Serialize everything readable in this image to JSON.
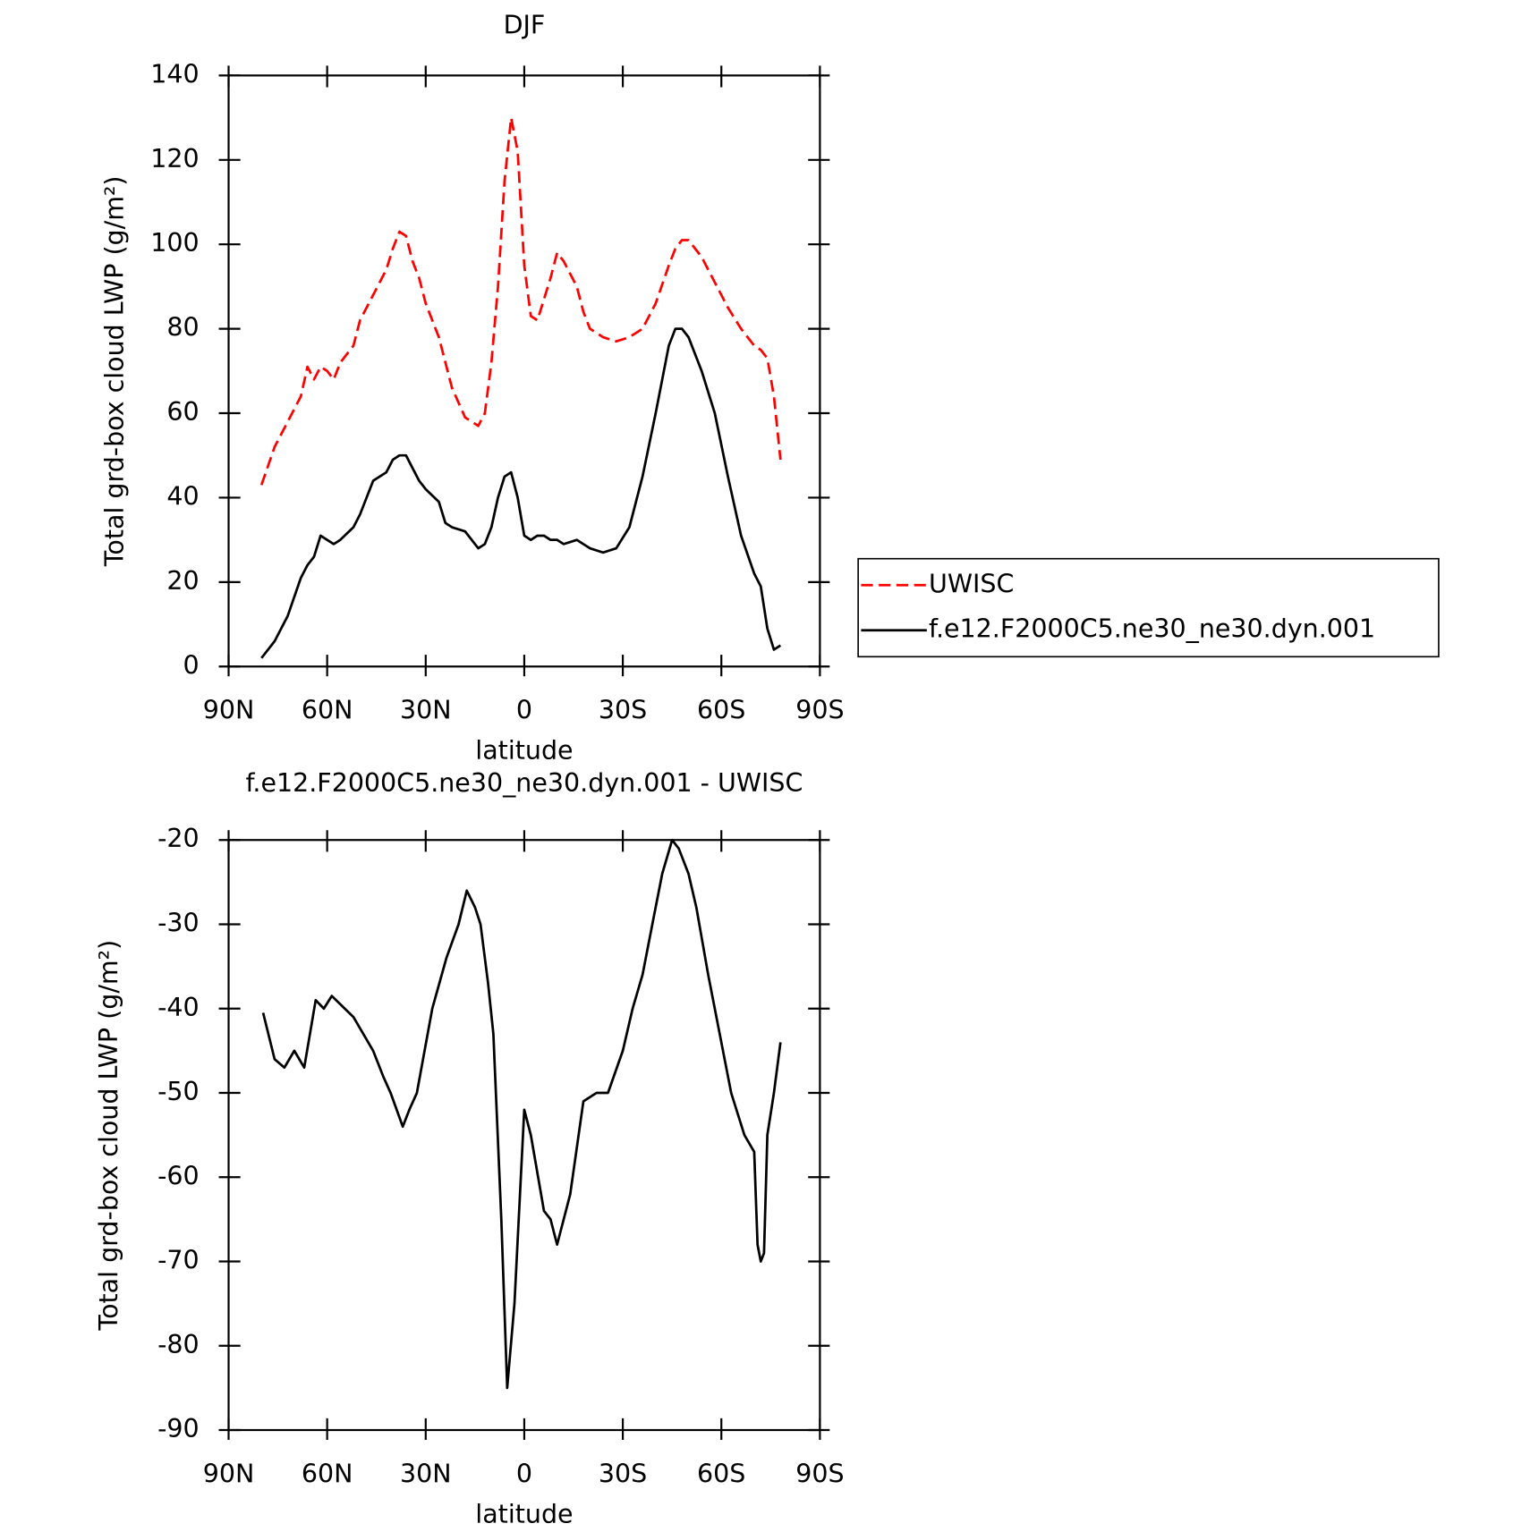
{
  "chart_data": [
    {
      "type": "line",
      "title": "DJF",
      "xlabel": "latitude",
      "ylabel": "Total grd-box cloud LWP (g/m²)",
      "xlim": [
        90,
        -90
      ],
      "xticks": [
        {
          "value": 90,
          "label": "90N"
        },
        {
          "value": 60,
          "label": "60N"
        },
        {
          "value": 30,
          "label": "30N"
        },
        0,
        {
          "value": -30,
          "label": "30S"
        },
        {
          "value": -60,
          "label": "60S"
        },
        {
          "value": -90,
          "label": "90S"
        }
      ],
      "ylim": [
        0,
        140
      ],
      "yticks": [
        0,
        20,
        40,
        60,
        80,
        100,
        120,
        140
      ],
      "legend": "right",
      "x": [
        80,
        76,
        72,
        68,
        66,
        64,
        62,
        60,
        58,
        56,
        52,
        50,
        46,
        42,
        40,
        38,
        36,
        34,
        32,
        30,
        26,
        24,
        22,
        18,
        14,
        12,
        10,
        8,
        6,
        4,
        2,
        0,
        -2,
        -4,
        -6,
        -8,
        -10,
        -12,
        -16,
        -18,
        -20,
        -24,
        -28,
        -32,
        -36,
        -40,
        -44,
        -46,
        -48,
        -50,
        -54,
        -58,
        -62,
        -66,
        -70,
        -72,
        -74,
        -76,
        -78
      ],
      "series": [
        {
          "name": "UWISC",
          "color": "#ff0000",
          "dash": true,
          "values": [
            43,
            52,
            58,
            64,
            71,
            68,
            71,
            70,
            68,
            72,
            76,
            82,
            88,
            94,
            99,
            103,
            102,
            96,
            92,
            86,
            78,
            72,
            66,
            59,
            57,
            60,
            72,
            90,
            115,
            130,
            122,
            95,
            83,
            82,
            87,
            92,
            98,
            96,
            90,
            84,
            80,
            78,
            77,
            78,
            80,
            86,
            95,
            99,
            101,
            101,
            97,
            91,
            85,
            80,
            76,
            75,
            73,
            64,
            49
          ]
        },
        {
          "name": "f.e12.F2000C5.ne30_ne30.dyn.001",
          "color": "#000000",
          "dash": false,
          "values": [
            2,
            6,
            12,
            21,
            24,
            26,
            31,
            30,
            29,
            30,
            33,
            36,
            44,
            46,
            49,
            50,
            50,
            47,
            44,
            42,
            39,
            34,
            33,
            32,
            28,
            29,
            33,
            40,
            45,
            46,
            40,
            31,
            30,
            31,
            31,
            30,
            30,
            29,
            30,
            29,
            28,
            27,
            28,
            33,
            45,
            60,
            76,
            80,
            80,
            78,
            70,
            60,
            45,
            31,
            22,
            19,
            9,
            4,
            5
          ]
        }
      ]
    },
    {
      "type": "line",
      "title": "f.e12.F2000C5.ne30_ne30.dyn.001 - UWISC",
      "xlabel": "latitude",
      "ylabel": "Total grd-box cloud LWP (g/m²)",
      "xlim": [
        90,
        -90
      ],
      "xticks": [
        {
          "value": 90,
          "label": "90N"
        },
        {
          "value": 60,
          "label": "60N"
        },
        {
          "value": 30,
          "label": "30N"
        },
        0,
        {
          "value": -30,
          "label": "30S"
        },
        {
          "value": -60,
          "label": "60S"
        },
        {
          "value": -90,
          "label": "90S"
        }
      ],
      "ylim": [
        -90,
        -20
      ],
      "yticks": [
        -90,
        -80,
        -70,
        -60,
        -50,
        -40,
        -30,
        -20
      ],
      "x": [
        79.5,
        76,
        73,
        70,
        67,
        63.5,
        61,
        58.6,
        52,
        46,
        43,
        40.7,
        37,
        35,
        32.7,
        28,
        23.7,
        20,
        17.5,
        15,
        13.3,
        11,
        9.4,
        7,
        5.2,
        3,
        0,
        -2,
        -6,
        -8,
        -10,
        -14,
        -18,
        -22,
        -25.5,
        -30,
        -33,
        -36,
        -39,
        -42,
        -45,
        -47,
        -50,
        -52.4,
        -56,
        -63,
        -67,
        -70,
        -71,
        -72,
        -73,
        -74,
        -76,
        -78
      ],
      "series": [
        {
          "color": "#000000",
          "dash": false,
          "values": [
            -40.5,
            -46,
            -47,
            -45,
            -47,
            -39,
            -40,
            -38.5,
            -41,
            -45,
            -48,
            -50,
            -54,
            -52,
            -50,
            -40,
            -34,
            -30,
            -26,
            -28,
            -30,
            -37,
            -43,
            -65,
            -85,
            -75,
            -52,
            -55,
            -64,
            -65,
            -68,
            -62,
            -51,
            -50,
            -50,
            -45,
            -40,
            -36,
            -30,
            -24,
            -20,
            -21,
            -24,
            -28,
            -36,
            -50,
            -55,
            -57,
            -68,
            -70,
            -69,
            -55,
            -50,
            -44
          ]
        }
      ]
    }
  ]
}
